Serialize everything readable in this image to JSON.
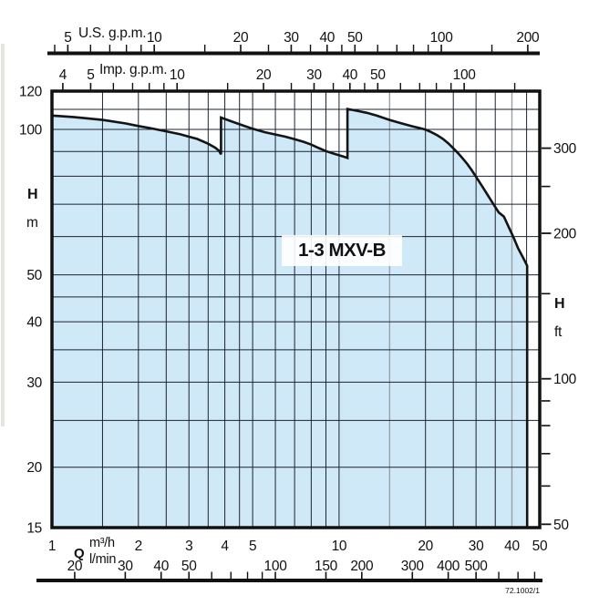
{
  "labels": {
    "title": "1-3 MXV-B",
    "drawing_number": "72.1002/1",
    "q_symbol": "Q",
    "unit_m3h": "m³/h",
    "unit_lmin": "l/min",
    "left_axis_symbol": "H",
    "left_axis_unit": "m",
    "right_axis_symbol": "H",
    "right_axis_unit": "ft",
    "us_gpm_label": "U.S. g.p.m.",
    "imp_gpm_label": "Imp. g.p.m."
  },
  "colors": {
    "area_fill": "#cfe9f8",
    "curve_stroke": "#141414",
    "grid": "#1c2330",
    "grid_gray": "#9aa0a4",
    "axis": "#111111"
  },
  "chart_data": {
    "type": "area",
    "title": "1-3 MXV-B",
    "x_axis": {
      "scale": "log",
      "unit": "m³/h",
      "min": 1,
      "max": 50,
      "tick_labels": [
        1,
        2,
        3,
        4,
        5,
        10,
        20,
        30,
        40,
        50
      ],
      "gridlines": [
        1.5,
        2,
        2.5,
        3,
        3.5,
        4,
        4.5,
        5,
        6,
        7,
        8,
        9,
        10,
        15,
        20,
        25,
        30,
        35,
        40,
        45
      ],
      "gray_gridlines": [
        15,
        40
      ]
    },
    "y_axis_left": {
      "scale": "log",
      "unit": "m",
      "min": 15,
      "max": 120,
      "tick_labels": [
        120,
        100,
        50,
        40,
        30,
        20,
        15
      ],
      "gridlines": [
        20,
        25,
        30,
        35,
        40,
        45,
        50,
        60,
        70,
        80,
        90,
        100,
        110
      ]
    },
    "y_axis_right": {
      "unit": "ft",
      "tick_labels": [
        300,
        200,
        100,
        50
      ],
      "minor_ticks": [
        250,
        150,
        90,
        80,
        70,
        60
      ]
    },
    "us_gpm_axis": {
      "label": "U.S. g.p.m.",
      "tick_labels": [
        5,
        10,
        20,
        30,
        40,
        50,
        100,
        200
      ],
      "minor_ticks": [
        4.5,
        6,
        7,
        8,
        9,
        15,
        25,
        35,
        45,
        60,
        70,
        80,
        90,
        150
      ]
    },
    "imp_gpm_axis": {
      "label": "Imp. g.p.m.",
      "tick_labels": [
        4,
        5,
        10,
        20,
        30,
        40,
        50,
        100
      ],
      "minor_ticks": [
        6,
        7,
        8,
        9,
        15,
        25,
        35,
        45,
        60,
        70,
        80,
        90,
        150
      ]
    },
    "lmin_axis": {
      "label": "l/min",
      "tick_labels": [
        20,
        30,
        40,
        50,
        100,
        150,
        200,
        300,
        400,
        500
      ],
      "minor_ticks": [
        60,
        70,
        80,
        90,
        600,
        700,
        800
      ]
    },
    "envelope_q_m3h_vs_h_m": [
      [
        1.0,
        106.8
      ],
      [
        1.2,
        106.0
      ],
      [
        1.5,
        104.6
      ],
      [
        1.8,
        102.9
      ],
      [
        2.0,
        101.6
      ],
      [
        2.2,
        100.6
      ],
      [
        2.5,
        99.1
      ],
      [
        2.8,
        97.7
      ],
      [
        3.0,
        96.6
      ],
      [
        3.2,
        95.6
      ],
      [
        3.5,
        93.4
      ],
      [
        3.7,
        91.7
      ],
      [
        3.82,
        90.3
      ],
      [
        3.88,
        88.8
      ],
      [
        3.88,
        105.8
      ],
      [
        4.2,
        104.0
      ],
      [
        4.6,
        102.0
      ],
      [
        5.0,
        100.3
      ],
      [
        5.5,
        98.7
      ],
      [
        6.0,
        97.6
      ],
      [
        6.5,
        96.6
      ],
      [
        7.0,
        95.4
      ],
      [
        7.5,
        94.3
      ],
      [
        8.0,
        93.0
      ],
      [
        8.5,
        91.5
      ],
      [
        9.0,
        90.2
      ],
      [
        9.5,
        89.2
      ],
      [
        10.0,
        88.4
      ],
      [
        10.4,
        87.8
      ],
      [
        10.7,
        87.3
      ],
      [
        10.7,
        110.2
      ],
      [
        11.5,
        109.3
      ],
      [
        12.5,
        108.2
      ],
      [
        13.5,
        106.8
      ],
      [
        15.0,
        104.6
      ],
      [
        16.5,
        102.9
      ],
      [
        18.0,
        101.5
      ],
      [
        19.0,
        100.7
      ],
      [
        20.0,
        99.9
      ],
      [
        21.0,
        98.6
      ],
      [
        22.0,
        97.2
      ],
      [
        23.0,
        95.6
      ],
      [
        24.0,
        93.6
      ],
      [
        25.0,
        91.4
      ],
      [
        26.0,
        89.2
      ],
      [
        27.0,
        87.0
      ],
      [
        28.0,
        84.7
      ],
      [
        29.0,
        82.3
      ],
      [
        30.0,
        79.8
      ],
      [
        31.5,
        76.3
      ],
      [
        33.0,
        73.0
      ],
      [
        34.5,
        70.0
      ],
      [
        36.0,
        67.3
      ],
      [
        37.5,
        66.0
      ],
      [
        39.0,
        62.8
      ],
      [
        40.5,
        59.8
      ],
      [
        42.0,
        56.8
      ],
      [
        43.5,
        54.6
      ],
      [
        44.5,
        53.2
      ],
      [
        45.2,
        52.2
      ]
    ],
    "max_flow_m3h": 45.2
  }
}
